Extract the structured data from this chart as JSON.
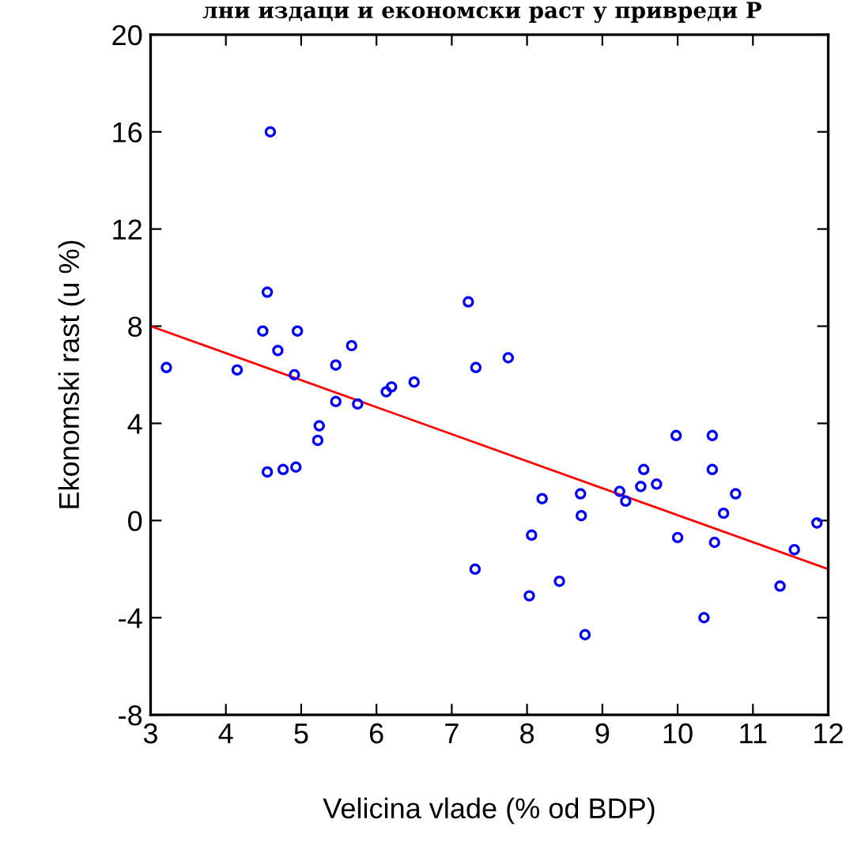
{
  "chart_data": {
    "type": "scatter",
    "title": "лни издаци и економски раст у привреди Р",
    "xlabel": "Velicina vlade (% od BDP)",
    "ylabel": "Ekonomski rast (u %)",
    "xlim": [
      3,
      12
    ],
    "xticks": [
      3,
      4,
      5,
      6,
      7,
      8,
      9,
      10,
      11,
      12
    ],
    "ylim": [
      -8,
      20
    ],
    "yticks": [
      {
        "value": -8,
        "label": "-8"
      },
      {
        "value": -4,
        "label": "-4"
      },
      0,
      4,
      8,
      12,
      16,
      20
    ],
    "grid": false,
    "legend": false,
    "series": [
      {
        "color": "#0000ff",
        "marker": "circle",
        "x": [
          3.21,
          4.15,
          4.49,
          4.55,
          4.59,
          4.69,
          4.95,
          4.91,
          4.55,
          4.76,
          4.93,
          5.24,
          5.22,
          5.46,
          5.67,
          5.75,
          5.46,
          6.13,
          6.2,
          6.5,
          7.22,
          7.32,
          7.75,
          7.31,
          9.98,
          10.46,
          9.55,
          10.46,
          9.51,
          9.72,
          9.23,
          9.31,
          10.77,
          10.61,
          8.2,
          8.71,
          8.72,
          8.06,
          10.0,
          10.49,
          11.85,
          11.55,
          8.43,
          8.03,
          11.36,
          10.35,
          8.77
        ],
        "values": [
          6.3,
          6.2,
          7.8,
          9.4,
          16.0,
          7.0,
          7.8,
          6.0,
          2.0,
          2.1,
          2.2,
          3.9,
          3.3,
          6.4,
          7.2,
          4.8,
          4.9,
          5.3,
          5.5,
          5.7,
          9.0,
          6.3,
          6.7,
          -2.0,
          3.5,
          3.5,
          2.1,
          2.1,
          1.4,
          1.5,
          1.2,
          0.8,
          1.1,
          0.3,
          0.9,
          1.1,
          0.2,
          -0.6,
          -0.7,
          -0.9,
          -0.1,
          -1.2,
          -2.5,
          -3.1,
          -2.7,
          -4.0,
          -4.7
        ]
      },
      {
        "type": "line",
        "color": "#ff0000",
        "marker": "none",
        "line_style": "solid",
        "x": [
          3,
          12
        ],
        "values": [
          8.0,
          -2.0
        ]
      }
    ]
  }
}
